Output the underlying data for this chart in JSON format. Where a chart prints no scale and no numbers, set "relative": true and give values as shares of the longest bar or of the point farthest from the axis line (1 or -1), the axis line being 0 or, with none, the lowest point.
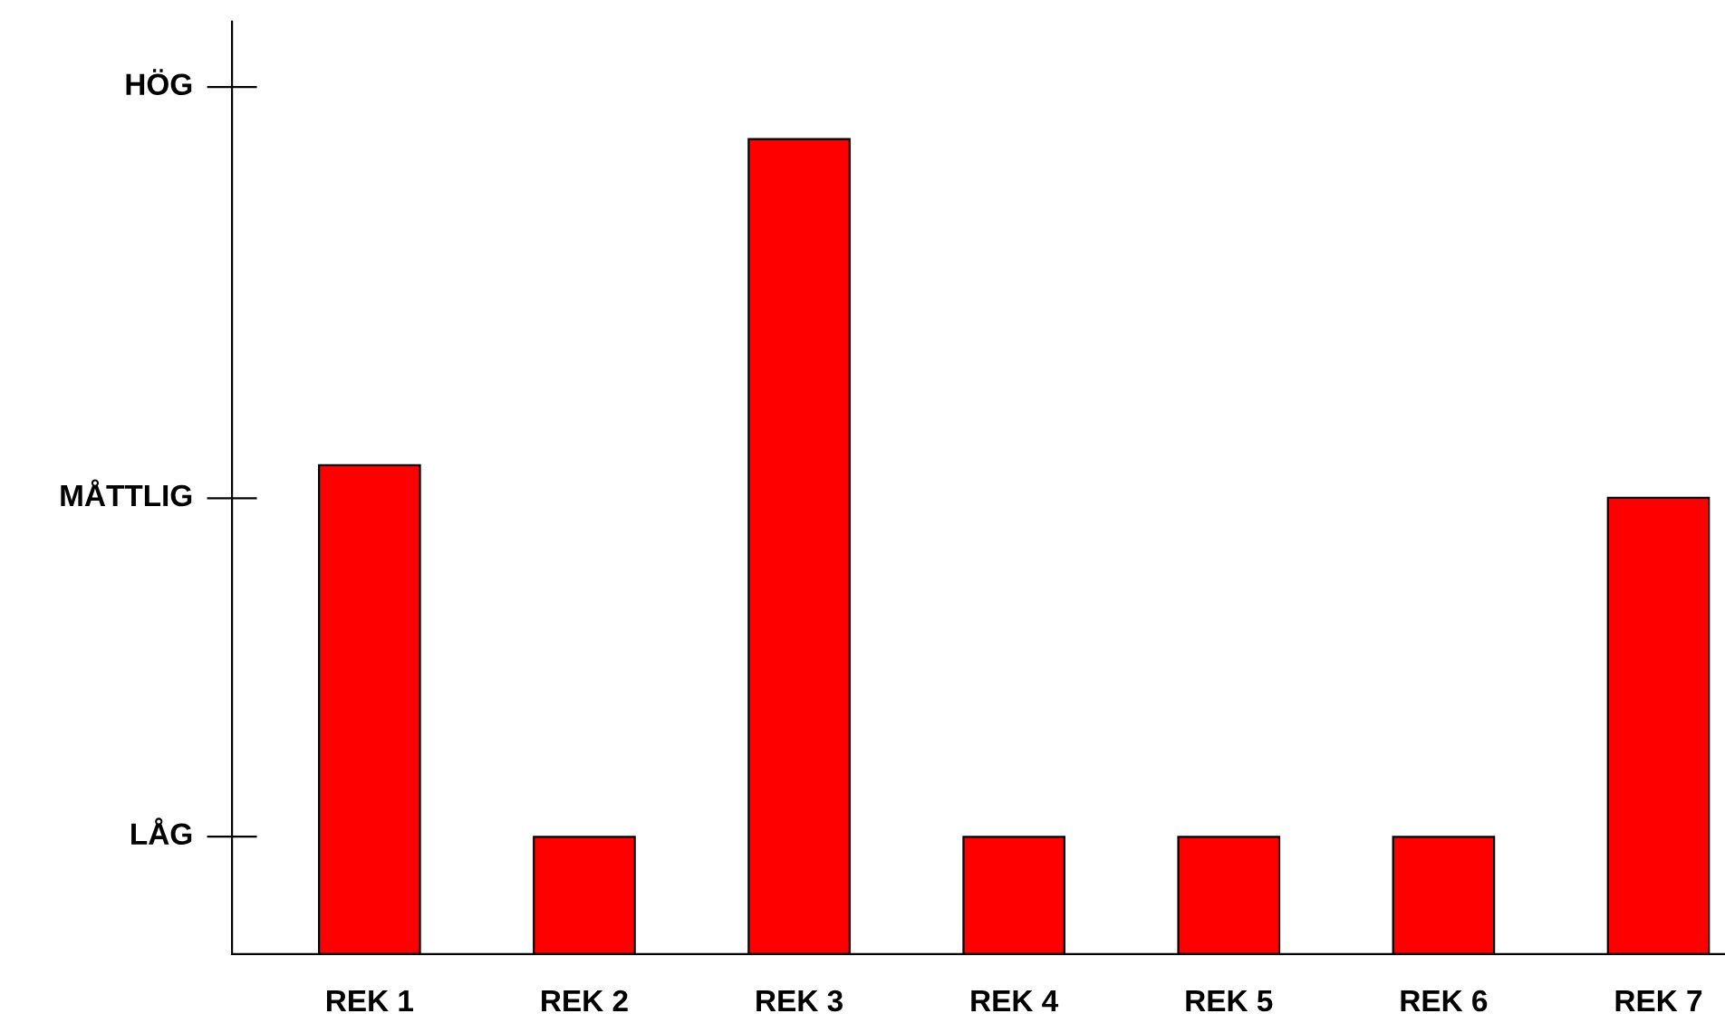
{
  "chart_data": {
    "type": "bar",
    "categories": [
      "REK 1",
      "REK 2",
      "REK 3",
      "REK 4",
      "REK 5",
      "REK 6",
      "REK 7"
    ],
    "values": [
      0.6,
      0.144,
      1,
      0.144,
      0.144,
      0.144,
      0.56
    ],
    "color": "#ff0000",
    "relative": true,
    "annotations": [
      "LÅG",
      "MÅTTLIG",
      "HÖG"
    ]
  }
}
